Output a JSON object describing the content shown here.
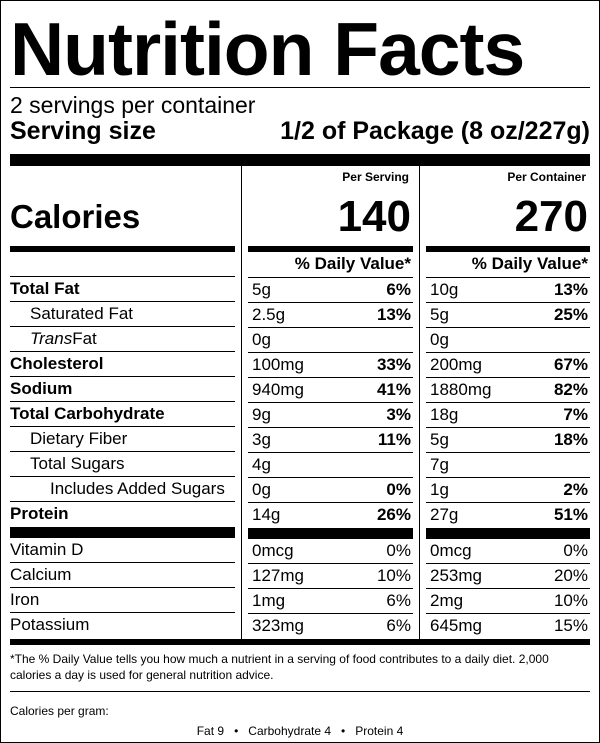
{
  "title": "Nutrition Facts",
  "servings_per_container": "2 servings per container",
  "serving_size": {
    "label": "Serving size",
    "value": "1/2 of Package (8 oz/227g)"
  },
  "calories": {
    "label": "Calories",
    "per_serving_header": "Per Serving",
    "per_container_header": "Per Container",
    "per_serving": "140",
    "per_container": "270"
  },
  "dv_header": "% Daily Value*",
  "nutrients": [
    {
      "name": "Total Fat",
      "serving_amt": "5g",
      "serving_dv": "6%",
      "container_amt": "10g",
      "container_dv": "13%"
    },
    {
      "name": "Saturated Fat",
      "serving_amt": "2.5g",
      "serving_dv": "13%",
      "container_amt": "5g",
      "container_dv": "25%"
    },
    {
      "name_italic": "Trans",
      "name_rest": " Fat",
      "serving_amt": "0g",
      "serving_dv": "",
      "container_amt": "0g",
      "container_dv": ""
    },
    {
      "name": "Cholesterol",
      "serving_amt": "100mg",
      "serving_dv": "33%",
      "container_amt": "200mg",
      "container_dv": "67%"
    },
    {
      "name": "Sodium",
      "serving_amt": "940mg",
      "serving_dv": "41%",
      "container_amt": "1880mg",
      "container_dv": "82%"
    },
    {
      "name": "Total Carbohydrate",
      "serving_amt": "9g",
      "serving_dv": "3%",
      "container_amt": "18g",
      "container_dv": "7%"
    },
    {
      "name": "Dietary Fiber",
      "serving_amt": "3g",
      "serving_dv": "11%",
      "container_amt": "5g",
      "container_dv": "18%"
    },
    {
      "name": "Total Sugars",
      "serving_amt": "4g",
      "serving_dv": "",
      "container_amt": "7g",
      "container_dv": ""
    },
    {
      "name": "Includes Added Sugars",
      "serving_amt": "0g",
      "serving_dv": "0%",
      "container_amt": "1g",
      "container_dv": "2%"
    },
    {
      "name": "Protein",
      "serving_amt": "14g",
      "serving_dv": "26%",
      "container_amt": "27g",
      "container_dv": "51%"
    }
  ],
  "vitamins": [
    {
      "name": "Vitamin D",
      "serving_amt": "0mcg",
      "serving_dv": "0%",
      "container_amt": "0mcg",
      "container_dv": "0%"
    },
    {
      "name": "Calcium",
      "serving_amt": "127mg",
      "serving_dv": "10%",
      "container_amt": "253mg",
      "container_dv": "20%"
    },
    {
      "name": "Iron",
      "serving_amt": "1mg",
      "serving_dv": "6%",
      "container_amt": "2mg",
      "container_dv": "10%"
    },
    {
      "name": "Potassium",
      "serving_amt": "323mg",
      "serving_dv": "6%",
      "container_amt": "645mg",
      "container_dv": "15%"
    }
  ],
  "footnote": "*The % Daily Value tells you how much a nutrient in a serving of food contributes to a daily diet. 2,000 calories a day is used for general nutrition advice.",
  "calories_per_gram": {
    "label": "Calories per gram:",
    "fat": "Fat 9",
    "carbohydrate": "Carbohydrate 4",
    "protein": "Protein 4",
    "separator": "•"
  }
}
